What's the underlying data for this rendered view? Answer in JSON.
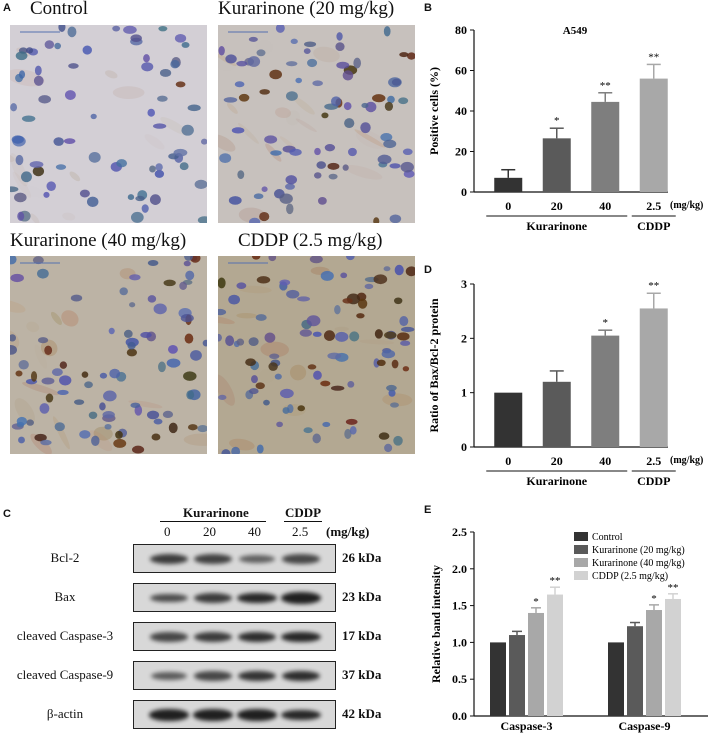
{
  "panels": {
    "A": "A",
    "B": "B",
    "C": "C",
    "D": "D",
    "E": "E"
  },
  "ihc": {
    "labels": [
      "Control",
      "Kurarinone (20 mg/kg)",
      "Kurarinone (40 mg/kg)",
      "CDDP (2.5 mg/kg)"
    ],
    "staining_levels": [
      0.1,
      0.35,
      0.6,
      0.8
    ]
  },
  "colors": {
    "bar_darkest": "#333333",
    "bar_dark": "#5a5a5a",
    "bar_mid": "#7e7e7e",
    "bar_light": "#a8a8a8",
    "bar_lightest": "#d2d2d2",
    "nuclei_blue": "#4a5a96",
    "brown_stain": "#7a4a1e"
  },
  "chart_data": [
    {
      "id": "B",
      "type": "bar",
      "title": "A549",
      "ylabel": "Positive cells (%)",
      "unit_label": "(mg/kg)",
      "categories": [
        "0",
        "20",
        "40",
        "2.5"
      ],
      "group_labels": [
        {
          "label": "Kurarinone",
          "span": [
            0,
            2
          ]
        },
        {
          "label": "CDDP",
          "span": [
            3,
            3
          ]
        }
      ],
      "values": [
        7,
        26.5,
        44.5,
        56
      ],
      "errors": [
        4,
        5,
        4.5,
        7
      ],
      "significance": [
        "",
        "*",
        "**",
        "**"
      ],
      "ylim": [
        0,
        80
      ],
      "yticks": [
        0,
        20,
        40,
        60,
        80
      ]
    },
    {
      "id": "D",
      "type": "bar",
      "title": "",
      "ylabel": "Ratio of Bax/Bcl-2 protein",
      "unit_label": "(mg/kg)",
      "categories": [
        "0",
        "20",
        "40",
        "2.5"
      ],
      "group_labels": [
        {
          "label": "Kurarinone",
          "span": [
            0,
            2
          ]
        },
        {
          "label": "CDDP",
          "span": [
            3,
            3
          ]
        }
      ],
      "values": [
        1.0,
        1.2,
        2.05,
        2.55
      ],
      "errors": [
        0,
        0.2,
        0.1,
        0.28
      ],
      "significance": [
        "",
        "",
        "*",
        "**"
      ],
      "ylim": [
        0,
        3
      ],
      "yticks": [
        0,
        1,
        2,
        3
      ]
    },
    {
      "id": "E",
      "type": "bar",
      "title": "",
      "ylabel": "Relative band intensity",
      "categories": [
        "Caspase-3",
        "Caspase-9"
      ],
      "series": [
        {
          "name": "Control",
          "values": [
            1.0,
            1.0
          ],
          "errors": [
            0,
            0
          ],
          "significance": [
            "",
            ""
          ]
        },
        {
          "name": "Kurarinone (20 mg/kg)",
          "values": [
            1.1,
            1.22
          ],
          "errors": [
            0.05,
            0.05
          ],
          "significance": [
            "",
            ""
          ]
        },
        {
          "name": "Kurarinone (40 mg/kg)",
          "values": [
            1.4,
            1.44
          ],
          "errors": [
            0.07,
            0.07
          ],
          "significance": [
            "*",
            "*"
          ]
        },
        {
          "name": "CDDP (2.5 mg/kg)",
          "values": [
            1.65,
            1.59
          ],
          "errors": [
            0.1,
            0.07
          ],
          "significance": [
            "**",
            "**"
          ]
        }
      ],
      "ylim": [
        0,
        2.5
      ],
      "yticks": [
        "0.0",
        "0.5",
        "1.0",
        "1.5",
        "2.0",
        "2.5"
      ],
      "legend_position": "top-right"
    }
  ],
  "blot": {
    "group_label": "Kurarinone",
    "cddp_label": "CDDP",
    "doses": [
      "0",
      "20",
      "40",
      "2.5"
    ],
    "unit": "(mg/kg)",
    "rows": [
      {
        "name": "Bcl-2",
        "kda": "26 kDa",
        "intensity": [
          0.7,
          0.65,
          0.4,
          0.6
        ]
      },
      {
        "name": "Bax",
        "kda": "23 kDa",
        "intensity": [
          0.55,
          0.7,
          0.85,
          0.9
        ]
      },
      {
        "name": "cleaved Caspase-3",
        "kda": "17 kDa",
        "intensity": [
          0.6,
          0.7,
          0.8,
          0.85
        ]
      },
      {
        "name": "cleaved Caspase-9",
        "kda": "37 kDa",
        "intensity": [
          0.45,
          0.6,
          0.75,
          0.8
        ]
      },
      {
        "name": "β-actin",
        "kda": "42 kDa",
        "intensity": [
          0.9,
          0.9,
          0.9,
          0.85
        ]
      }
    ]
  }
}
